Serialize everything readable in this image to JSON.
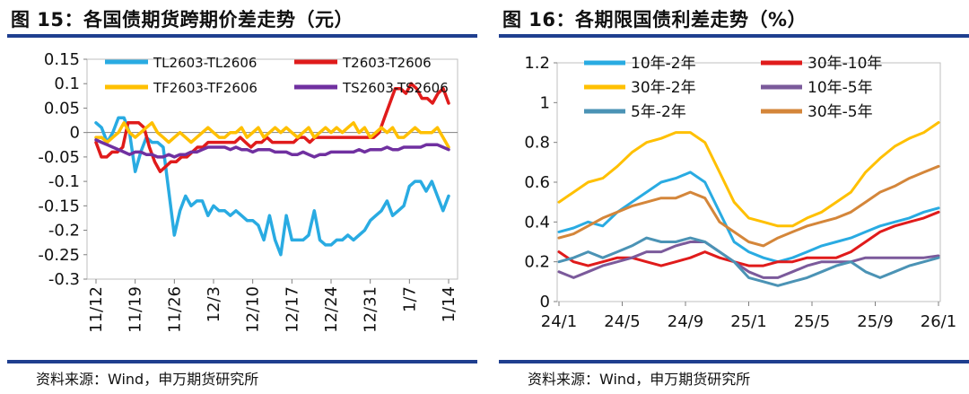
{
  "charts": {
    "left": {
      "title": "图 15：各国债期货跨期价差走势（元）",
      "source": "资料来源：Wind，申万期货研究所"
    },
    "right": {
      "title": "图 16：各期限国债利差走势（%）",
      "source": "资料来源：Wind，申万期货研究所"
    }
  },
  "chart_data": [
    {
      "type": "line",
      "title": "图 15：各国债期货跨期价差走势（元）",
      "ylim": [
        -0.3,
        0.15
      ],
      "yticks": [
        "0.15",
        "0.1",
        "0.05",
        "0",
        "-0.05",
        "-0.1",
        "-0.15",
        "-0.2",
        "-0.25",
        "-0.3"
      ],
      "xticks": [
        "11/12",
        "11/19",
        "11/26",
        "12/3",
        "12/10",
        "12/17",
        "12/24",
        "12/31",
        "1/7",
        "1/14"
      ],
      "legend_position": "top",
      "series": [
        {
          "name": "TL2603-TL2606",
          "color": "#29abe2",
          "values": [
            0.02,
            0.01,
            -0.02,
            0.0,
            0.03,
            0.03,
            0.0,
            -0.08,
            -0.04,
            -0.01,
            -0.02,
            -0.02,
            -0.03,
            -0.12,
            -0.21,
            -0.16,
            -0.13,
            -0.15,
            -0.14,
            -0.14,
            -0.17,
            -0.15,
            -0.16,
            -0.16,
            -0.17,
            -0.16,
            -0.17,
            -0.18,
            -0.18,
            -0.19,
            -0.22,
            -0.17,
            -0.22,
            -0.25,
            -0.17,
            -0.22,
            -0.22,
            -0.22,
            -0.21,
            -0.16,
            -0.22,
            -0.23,
            -0.23,
            -0.22,
            -0.22,
            -0.21,
            -0.22,
            -0.21,
            -0.2,
            -0.18,
            -0.17,
            -0.16,
            -0.14,
            -0.17,
            -0.16,
            -0.15,
            -0.11,
            -0.1,
            -0.1,
            -0.12,
            -0.1,
            -0.13,
            -0.16,
            -0.13
          ]
        },
        {
          "name": "T2603-T2606",
          "color": "#e01b1b",
          "values": [
            -0.02,
            -0.05,
            -0.05,
            -0.04,
            -0.04,
            -0.03,
            0.02,
            0.02,
            0.02,
            0.01,
            -0.03,
            -0.06,
            -0.08,
            -0.07,
            -0.06,
            -0.06,
            -0.05,
            -0.05,
            -0.04,
            -0.03,
            -0.03,
            -0.02,
            -0.02,
            -0.02,
            -0.02,
            -0.02,
            -0.02,
            -0.01,
            -0.02,
            -0.03,
            -0.02,
            -0.02,
            -0.01,
            -0.02,
            -0.02,
            -0.02,
            -0.02,
            -0.02,
            -0.01,
            -0.01,
            -0.02,
            -0.01,
            -0.01,
            -0.01,
            -0.01,
            -0.01,
            -0.01,
            -0.01,
            -0.01,
            -0.01,
            -0.01,
            -0.01,
            -0.01,
            0.0,
            0.03,
            0.06,
            0.09,
            0.09,
            0.08,
            0.1,
            0.09,
            0.07,
            0.07,
            0.06,
            0.08,
            0.09,
            0.06
          ]
        },
        {
          "name": "TF2603-TF2606",
          "color": "#ffc000",
          "values": [
            -0.01,
            -0.01,
            -0.02,
            -0.01,
            0.0,
            0.02,
            0.0,
            -0.01,
            0.0,
            0.01,
            0.02,
            0.0,
            -0.01,
            -0.02,
            -0.01,
            0.0,
            -0.01,
            -0.02,
            -0.01,
            0.0,
            0.01,
            0.0,
            -0.01,
            -0.01,
            0.0,
            0.0,
            0.01,
            -0.01,
            0.0,
            0.01,
            -0.01,
            0.0,
            0.01,
            0.0,
            0.01,
            0.0,
            -0.01,
            0.0,
            0.01,
            -0.01,
            0.0,
            0.01,
            0.0,
            0.01,
            0.0,
            0.01,
            0.02,
            0.0,
            0.01,
            -0.01,
            0.0,
            0.01,
            0.0,
            0.01,
            -0.01,
            -0.01,
            0.0,
            0.01,
            0.0,
            0.0,
            0.0,
            0.01,
            -0.01,
            -0.03
          ]
        },
        {
          "name": "TS2603-TS2606",
          "color": "#7030a0",
          "values": [
            -0.015,
            -0.02,
            -0.025,
            -0.03,
            -0.035,
            -0.04,
            -0.045,
            -0.04,
            -0.04,
            -0.045,
            -0.045,
            -0.05,
            -0.05,
            -0.045,
            -0.05,
            -0.045,
            -0.045,
            -0.04,
            -0.04,
            -0.035,
            -0.03,
            -0.03,
            -0.03,
            -0.03,
            -0.035,
            -0.03,
            -0.035,
            -0.035,
            -0.04,
            -0.035,
            -0.035,
            -0.035,
            -0.04,
            -0.04,
            -0.04,
            -0.045,
            -0.045,
            -0.04,
            -0.045,
            -0.05,
            -0.045,
            -0.045,
            -0.04,
            -0.04,
            -0.04,
            -0.04,
            -0.04,
            -0.035,
            -0.04,
            -0.035,
            -0.035,
            -0.035,
            -0.03,
            -0.035,
            -0.035,
            -0.03,
            -0.03,
            -0.03,
            -0.03,
            -0.025,
            -0.025,
            -0.025,
            -0.03,
            -0.035
          ]
        }
      ]
    },
    {
      "type": "line",
      "title": "图 16：各期限国债利差走势（%）",
      "ylim": [
        0,
        1.2
      ],
      "yticks": [
        "1.2",
        "1",
        "0.8",
        "0.6",
        "0.4",
        "0.2",
        "0"
      ],
      "xticks": [
        "24/1",
        "24/5",
        "24/9",
        "25/1",
        "25/5",
        "25/9",
        "26/1"
      ],
      "legend_position": "top-left",
      "series": [
        {
          "name": "10年-2年",
          "color": "#29abe2",
          "values": [
            0.35,
            0.37,
            0.4,
            0.38,
            0.45,
            0.5,
            0.55,
            0.6,
            0.62,
            0.65,
            0.6,
            0.45,
            0.3,
            0.25,
            0.22,
            0.2,
            0.22,
            0.25,
            0.28,
            0.3,
            0.32,
            0.35,
            0.38,
            0.4,
            0.42,
            0.45,
            0.47
          ]
        },
        {
          "name": "30年-10年",
          "color": "#e01b1b",
          "values": [
            0.25,
            0.2,
            0.18,
            0.2,
            0.22,
            0.22,
            0.2,
            0.18,
            0.2,
            0.22,
            0.25,
            0.22,
            0.2,
            0.18,
            0.18,
            0.2,
            0.2,
            0.22,
            0.22,
            0.22,
            0.25,
            0.3,
            0.35,
            0.38,
            0.4,
            0.42,
            0.45
          ]
        },
        {
          "name": "30年-2年",
          "color": "#ffc000",
          "values": [
            0.5,
            0.55,
            0.6,
            0.62,
            0.68,
            0.75,
            0.8,
            0.82,
            0.85,
            0.85,
            0.8,
            0.65,
            0.5,
            0.42,
            0.4,
            0.38,
            0.38,
            0.42,
            0.45,
            0.5,
            0.55,
            0.65,
            0.72,
            0.78,
            0.82,
            0.85,
            0.9
          ]
        },
        {
          "name": "10年-5年",
          "color": "#7b5a9b",
          "values": [
            0.15,
            0.12,
            0.15,
            0.18,
            0.2,
            0.22,
            0.25,
            0.25,
            0.28,
            0.3,
            0.3,
            0.25,
            0.2,
            0.15,
            0.12,
            0.12,
            0.15,
            0.18,
            0.2,
            0.2,
            0.2,
            0.22,
            0.22,
            0.22,
            0.22,
            0.22,
            0.23
          ]
        },
        {
          "name": "5年-2年",
          "color": "#4b93b5",
          "values": [
            0.2,
            0.22,
            0.25,
            0.22,
            0.25,
            0.28,
            0.32,
            0.3,
            0.3,
            0.32,
            0.3,
            0.25,
            0.2,
            0.12,
            0.1,
            0.08,
            0.1,
            0.12,
            0.15,
            0.18,
            0.2,
            0.15,
            0.12,
            0.15,
            0.18,
            0.2,
            0.22
          ]
        },
        {
          "name": "30年-5年",
          "color": "#d4863a",
          "values": [
            0.32,
            0.34,
            0.38,
            0.42,
            0.45,
            0.48,
            0.5,
            0.52,
            0.52,
            0.55,
            0.52,
            0.4,
            0.35,
            0.3,
            0.28,
            0.32,
            0.35,
            0.38,
            0.4,
            0.42,
            0.45,
            0.5,
            0.55,
            0.58,
            0.62,
            0.65,
            0.68
          ]
        }
      ]
    }
  ]
}
